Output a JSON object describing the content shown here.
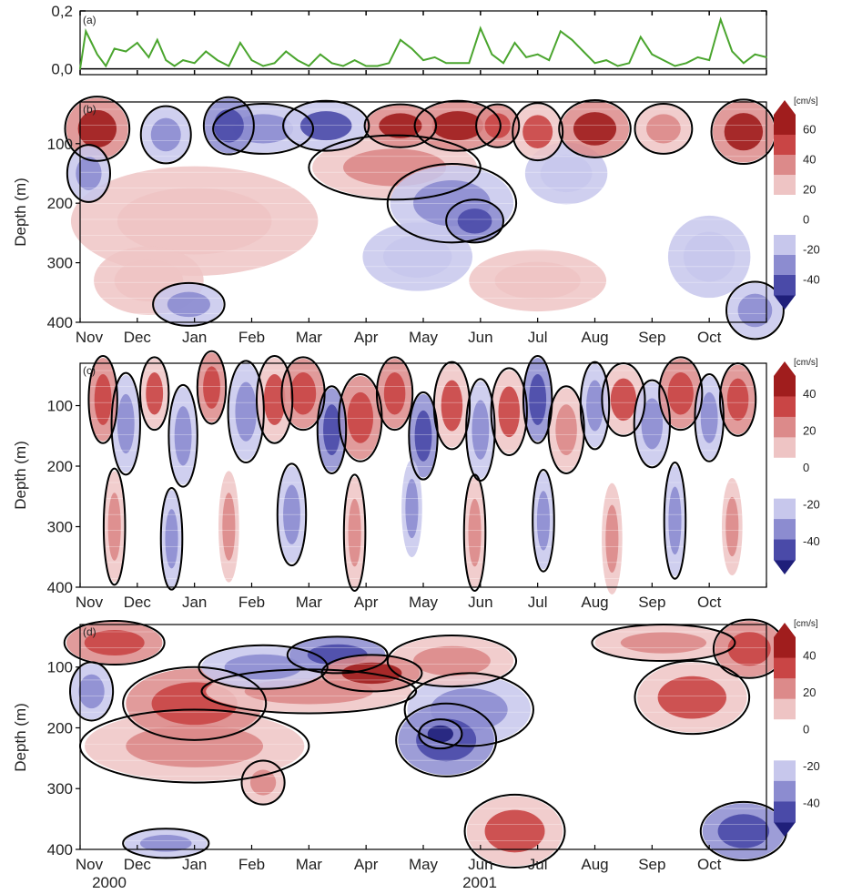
{
  "colors": {
    "line_green": "#4aa52e",
    "contour": "#000000",
    "scale": [
      "#1f1f7a",
      "#4a4aa8",
      "#8c8cd0",
      "#c7c7ec",
      "#ffffff",
      "#eec4c4",
      "#dc8a8a",
      "#c94545",
      "#a01d1d"
    ]
  },
  "months": [
    "Nov",
    "Dec",
    "Jan",
    "Feb",
    "Mar",
    "Apr",
    "May",
    "Jun",
    "Jul",
    "Aug",
    "Sep",
    "Oct"
  ],
  "years": [
    "2000",
    "2001"
  ],
  "panels": {
    "a": {
      "label": "(a)"
    },
    "b": {
      "label": "(b)"
    },
    "c": {
      "label": "(c)"
    },
    "d": {
      "label": "(d)"
    }
  },
  "colorbars": {
    "b": {
      "unit": "[cm/s]",
      "ticks": [
        "60",
        "40",
        "20",
        "0",
        "-20",
        "-40"
      ]
    },
    "c": {
      "unit": "[cm/s]",
      "ticks": [
        "40",
        "20",
        "0",
        "-20",
        "-40"
      ]
    },
    "d": {
      "unit": "[cm/s]",
      "ticks": [
        "40",
        "20",
        "0",
        "-20",
        "-40"
      ]
    }
  },
  "chart_data": [
    {
      "type": "line",
      "panel": "(a)",
      "x_categories": [
        "Nov",
        "Dec",
        "Jan",
        "Feb",
        "Mar",
        "Apr",
        "May",
        "Jun",
        "Jul",
        "Aug",
        "Sep",
        "Oct"
      ],
      "xlim": [
        0,
        12
      ],
      "ylim": [
        -0.02,
        0.2
      ],
      "yticks": [
        "0,0",
        "0,2"
      ],
      "x": [
        0,
        0.1,
        0.2,
        0.3,
        0.45,
        0.6,
        0.8,
        1.0,
        1.2,
        1.35,
        1.5,
        1.65,
        1.8,
        2.0,
        2.2,
        2.4,
        2.6,
        2.8,
        3.0,
        3.2,
        3.4,
        3.6,
        3.8,
        4.0,
        4.2,
        4.4,
        4.6,
        4.8,
        5.0,
        5.2,
        5.4,
        5.6,
        5.8,
        6.0,
        6.2,
        6.4,
        6.6,
        6.8,
        7.0,
        7.2,
        7.4,
        7.6,
        7.8,
        8.0,
        8.2,
        8.4,
        8.6,
        8.8,
        9.0,
        9.2,
        9.4,
        9.6,
        9.8,
        10.0,
        10.2,
        10.4,
        10.6,
        10.8,
        11.0,
        11.2,
        11.4,
        11.6,
        11.8,
        12.0
      ],
      "y": [
        0.0,
        0.13,
        0.09,
        0.05,
        0.01,
        0.07,
        0.06,
        0.09,
        0.04,
        0.1,
        0.03,
        0.01,
        0.03,
        0.02,
        0.06,
        0.03,
        0.01,
        0.09,
        0.03,
        0.01,
        0.02,
        0.06,
        0.03,
        0.01,
        0.05,
        0.02,
        0.01,
        0.03,
        0.01,
        0.01,
        0.02,
        0.1,
        0.07,
        0.03,
        0.04,
        0.02,
        0.02,
        0.02,
        0.14,
        0.05,
        0.02,
        0.09,
        0.04,
        0.05,
        0.03,
        0.13,
        0.1,
        0.06,
        0.02,
        0.03,
        0.01,
        0.02,
        0.11,
        0.05,
        0.03,
        0.01,
        0.02,
        0.04,
        0.03,
        0.17,
        0.06,
        0.02,
        0.05,
        0.04
      ]
    },
    {
      "type": "heatmap",
      "panel": "(b)",
      "ylabel": "Depth (m)",
      "x_categories": [
        "Nov",
        "Dec",
        "Jan",
        "Feb",
        "Mar",
        "Apr",
        "May",
        "Jun",
        "Jul",
        "Aug",
        "Sep",
        "Oct"
      ],
      "xlim": [
        0,
        12
      ],
      "ylim": [
        400,
        30
      ],
      "yticks": [
        100,
        200,
        300,
        400
      ],
      "colorbar_unit": "[cm/s]",
      "colorbar_ticks": [
        60,
        40,
        20,
        0,
        -20,
        -40
      ],
      "blobs": [
        {
          "x": 0.3,
          "d": 75,
          "rx": 0.45,
          "rd": 45,
          "v": 60
        },
        {
          "x": 0.15,
          "d": 150,
          "rx": 0.3,
          "rd": 40,
          "v": -30
        },
        {
          "x": 1.5,
          "d": 85,
          "rx": 0.35,
          "rd": 40,
          "v": -30
        },
        {
          "x": 2.6,
          "d": 70,
          "rx": 0.35,
          "rd": 40,
          "v": -45
        },
        {
          "x": 3.2,
          "d": 75,
          "rx": 0.7,
          "rd": 35,
          "v": -35
        },
        {
          "x": 4.3,
          "d": 70,
          "rx": 0.6,
          "rd": 35,
          "v": -40
        },
        {
          "x": 5.5,
          "d": 140,
          "rx": 1.2,
          "rd": 45,
          "v": 35
        },
        {
          "x": 5.6,
          "d": 70,
          "rx": 0.5,
          "rd": 30,
          "v": 55
        },
        {
          "x": 6.6,
          "d": 70,
          "rx": 0.6,
          "rd": 35,
          "v": 60
        },
        {
          "x": 7.3,
          "d": 70,
          "rx": 0.3,
          "rd": 30,
          "v": 45
        },
        {
          "x": 8.0,
          "d": 80,
          "rx": 0.35,
          "rd": 40,
          "v": 40
        },
        {
          "x": 9.0,
          "d": 75,
          "rx": 0.5,
          "rd": 40,
          "v": 55
        },
        {
          "x": 10.2,
          "d": 75,
          "rx": 0.4,
          "rd": 35,
          "v": 30
        },
        {
          "x": 11.6,
          "d": 80,
          "rx": 0.45,
          "rd": 45,
          "v": 60
        },
        {
          "x": 6.5,
          "d": 200,
          "rx": 0.9,
          "rd": 55,
          "v": -35
        },
        {
          "x": 6.9,
          "d": 230,
          "rx": 0.4,
          "rd": 30,
          "v": -45
        },
        {
          "x": 5.9,
          "d": 290,
          "rx": 0.8,
          "rd": 50,
          "v": -20
        },
        {
          "x": 8.5,
          "d": 150,
          "rx": 0.6,
          "rd": 45,
          "v": -20
        },
        {
          "x": 2.0,
          "d": 230,
          "rx": 1.8,
          "rd": 80,
          "v": 18
        },
        {
          "x": 1.2,
          "d": 330,
          "rx": 0.8,
          "rd": 50,
          "v": 15
        },
        {
          "x": 8.0,
          "d": 330,
          "rx": 1.0,
          "rd": 45,
          "v": 15
        },
        {
          "x": 11.8,
          "d": 380,
          "rx": 0.4,
          "rd": 40,
          "v": -35
        },
        {
          "x": 11.0,
          "d": 290,
          "rx": 0.6,
          "rd": 60,
          "v": -18
        },
        {
          "x": 1.9,
          "d": 370,
          "rx": 0.5,
          "rd": 30,
          "v": -30
        }
      ]
    },
    {
      "type": "heatmap",
      "panel": "(c)",
      "ylabel": "Depth (m)",
      "x_categories": [
        "Nov",
        "Dec",
        "Jan",
        "Feb",
        "Mar",
        "Apr",
        "May",
        "Jun",
        "Jul",
        "Aug",
        "Sep",
        "Oct"
      ],
      "xlim": [
        0,
        12
      ],
      "ylim": [
        400,
        30
      ],
      "yticks": [
        100,
        200,
        300,
        400
      ],
      "colorbar_unit": "[cm/s]",
      "colorbar_ticks": [
        40,
        20,
        0,
        -20,
        -40
      ],
      "blobs": [
        {
          "x": 0.4,
          "d": 90,
          "rx": 0.2,
          "rd": 60,
          "v": 35
        },
        {
          "x": 0.8,
          "d": 130,
          "rx": 0.2,
          "rd": 70,
          "v": -30
        },
        {
          "x": 1.3,
          "d": 80,
          "rx": 0.2,
          "rd": 50,
          "v": 30
        },
        {
          "x": 1.8,
          "d": 150,
          "rx": 0.2,
          "rd": 70,
          "v": -25
        },
        {
          "x": 2.3,
          "d": 70,
          "rx": 0.2,
          "rd": 50,
          "v": 35
        },
        {
          "x": 2.9,
          "d": 110,
          "rx": 0.25,
          "rd": 70,
          "v": -30
        },
        {
          "x": 3.4,
          "d": 90,
          "rx": 0.25,
          "rd": 60,
          "v": 30
        },
        {
          "x": 3.9,
          "d": 80,
          "rx": 0.3,
          "rd": 50,
          "v": 40
        },
        {
          "x": 4.4,
          "d": 140,
          "rx": 0.2,
          "rd": 60,
          "v": -35
        },
        {
          "x": 4.9,
          "d": 120,
          "rx": 0.3,
          "rd": 60,
          "v": 35
        },
        {
          "x": 5.5,
          "d": 80,
          "rx": 0.25,
          "rd": 50,
          "v": 40
        },
        {
          "x": 6.0,
          "d": 150,
          "rx": 0.2,
          "rd": 60,
          "v": -35
        },
        {
          "x": 6.5,
          "d": 100,
          "rx": 0.25,
          "rd": 60,
          "v": 30
        },
        {
          "x": 7.0,
          "d": 140,
          "rx": 0.2,
          "rd": 70,
          "v": -25
        },
        {
          "x": 7.5,
          "d": 110,
          "rx": 0.25,
          "rd": 60,
          "v": 30
        },
        {
          "x": 8.0,
          "d": 90,
          "rx": 0.2,
          "rd": 60,
          "v": -35
        },
        {
          "x": 8.5,
          "d": 140,
          "rx": 0.25,
          "rd": 60,
          "v": 25
        },
        {
          "x": 9.0,
          "d": 100,
          "rx": 0.2,
          "rd": 60,
          "v": -30
        },
        {
          "x": 9.5,
          "d": 90,
          "rx": 0.3,
          "rd": 50,
          "v": 30
        },
        {
          "x": 10.0,
          "d": 130,
          "rx": 0.25,
          "rd": 60,
          "v": -30
        },
        {
          "x": 10.5,
          "d": 80,
          "rx": 0.3,
          "rd": 50,
          "v": 40
        },
        {
          "x": 11.0,
          "d": 120,
          "rx": 0.2,
          "rd": 60,
          "v": -25
        },
        {
          "x": 11.5,
          "d": 90,
          "rx": 0.25,
          "rd": 50,
          "v": 35
        },
        {
          "x": 0.6,
          "d": 300,
          "rx": 0.15,
          "rd": 80,
          "v": 25
        },
        {
          "x": 1.6,
          "d": 320,
          "rx": 0.15,
          "rd": 70,
          "v": -25
        },
        {
          "x": 2.6,
          "d": 300,
          "rx": 0.15,
          "rd": 80,
          "v": 20
        },
        {
          "x": 3.7,
          "d": 280,
          "rx": 0.2,
          "rd": 70,
          "v": -25
        },
        {
          "x": 4.8,
          "d": 310,
          "rx": 0.15,
          "rd": 80,
          "v": 25
        },
        {
          "x": 5.8,
          "d": 270,
          "rx": 0.15,
          "rd": 70,
          "v": -20
        },
        {
          "x": 6.9,
          "d": 310,
          "rx": 0.15,
          "rd": 80,
          "v": 25
        },
        {
          "x": 8.1,
          "d": 290,
          "rx": 0.15,
          "rd": 70,
          "v": -25
        },
        {
          "x": 9.3,
          "d": 320,
          "rx": 0.15,
          "rd": 80,
          "v": 20
        },
        {
          "x": 10.4,
          "d": 290,
          "rx": 0.15,
          "rd": 80,
          "v": -25
        },
        {
          "x": 11.4,
          "d": 300,
          "rx": 0.15,
          "rd": 70,
          "v": 20
        }
      ]
    },
    {
      "type": "heatmap",
      "panel": "(d)",
      "ylabel": "Depth (m)",
      "x_categories": [
        "Nov",
        "Dec",
        "Jan",
        "Feb",
        "Mar",
        "Apr",
        "May",
        "Jun",
        "Jul",
        "Aug",
        "Sep",
        "Oct"
      ],
      "x_year_labels": [
        "2000",
        "2001"
      ],
      "xlim": [
        0,
        12
      ],
      "ylim": [
        400,
        30
      ],
      "yticks": [
        100,
        200,
        300,
        400
      ],
      "colorbar_unit": "[cm/s]",
      "colorbar_ticks": [
        40,
        20,
        0,
        -20,
        -40
      ],
      "blobs": [
        {
          "x": 0.6,
          "d": 60,
          "rx": 0.7,
          "rd": 30,
          "v": 35
        },
        {
          "x": 0.2,
          "d": 140,
          "rx": 0.3,
          "rd": 40,
          "v": -30
        },
        {
          "x": 2.0,
          "d": 160,
          "rx": 1.0,
          "rd": 50,
          "v": 35
        },
        {
          "x": 2.0,
          "d": 230,
          "rx": 1.6,
          "rd": 50,
          "v": 25
        },
        {
          "x": 3.2,
          "d": 100,
          "rx": 0.9,
          "rd": 30,
          "v": -30
        },
        {
          "x": 4.5,
          "d": 80,
          "rx": 0.7,
          "rd": 25,
          "v": -40
        },
        {
          "x": 5.1,
          "d": 110,
          "rx": 0.7,
          "rd": 25,
          "v": 45
        },
        {
          "x": 4.0,
          "d": 140,
          "rx": 1.5,
          "rd": 30,
          "v": 25
        },
        {
          "x": 6.5,
          "d": 90,
          "rx": 0.9,
          "rd": 35,
          "v": 25
        },
        {
          "x": 6.8,
          "d": 170,
          "rx": 0.9,
          "rd": 50,
          "v": -30
        },
        {
          "x": 6.4,
          "d": 220,
          "rx": 0.7,
          "rd": 50,
          "v": -35
        },
        {
          "x": 6.3,
          "d": 210,
          "rx": 0.3,
          "rd": 20,
          "v": -50
        },
        {
          "x": 3.2,
          "d": 290,
          "rx": 0.3,
          "rd": 30,
          "v": 25
        },
        {
          "x": 7.6,
          "d": 370,
          "rx": 0.7,
          "rd": 50,
          "v": 30
        },
        {
          "x": 10.2,
          "d": 60,
          "rx": 1.0,
          "rd": 25,
          "v": 25
        },
        {
          "x": 11.7,
          "d": 70,
          "rx": 0.5,
          "rd": 40,
          "v": 40
        },
        {
          "x": 10.7,
          "d": 150,
          "rx": 0.8,
          "rd": 50,
          "v": 30
        },
        {
          "x": 11.6,
          "d": 370,
          "rx": 0.6,
          "rd": 40,
          "v": -35
        },
        {
          "x": 1.5,
          "d": 390,
          "rx": 0.6,
          "rd": 20,
          "v": -30
        }
      ]
    }
  ]
}
